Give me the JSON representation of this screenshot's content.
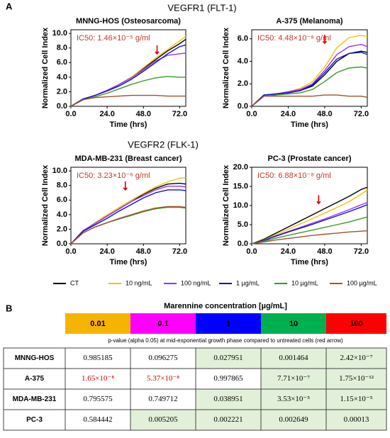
{
  "panel_a": {
    "label": "A",
    "groups": [
      "VEGFR1 (FLT-1)",
      "VEGFR2 (FLK-1)"
    ]
  },
  "legend": [
    {
      "name": "CT",
      "color": "#000000"
    },
    {
      "name": "10 ng/mL",
      "color": "#f2c500"
    },
    {
      "name": "100 ng/mL",
      "color": "#9b30ff"
    },
    {
      "name": "1 µg/mL",
      "color": "#1010c8"
    },
    {
      "name": "10 µg/mL",
      "color": "#3a9a28"
    },
    {
      "name": "100 µg/mL",
      "color": "#a0522d"
    }
  ],
  "chart_data": [
    {
      "type": "line",
      "title": "MNNG-HOS  (Osteosarcoma)",
      "annotation": "IC50: 1.46×10⁻⁵ g/ml",
      "xlabel": "Time (hrs)",
      "ylabel": "Normalized Cell Index",
      "x": [
        0,
        8,
        16,
        24,
        32,
        40,
        48,
        56,
        64,
        72,
        76
      ],
      "xlim": [
        0,
        76
      ],
      "ylim": [
        0,
        10.5
      ],
      "xticks": [
        {
          "value": 0,
          "label": "0.0"
        },
        {
          "value": 24,
          "label": "24.0"
        },
        {
          "value": 48,
          "label": "48.0"
        },
        {
          "value": 72,
          "label": "72.0"
        }
      ],
      "yticks": [
        {
          "value": 0,
          "label": "0.0"
        },
        {
          "value": 2,
          "label": "2.0"
        },
        {
          "value": 4,
          "label": "4.0"
        },
        {
          "value": 6,
          "label": "6.0"
        },
        {
          "value": 8,
          "label": "8.0"
        },
        {
          "value": 10,
          "label": "10.0"
        }
      ],
      "arrow": {
        "x": 57,
        "y": 7.2
      },
      "series": [
        {
          "values": [
            0,
            1.0,
            1.5,
            2.2,
            3.0,
            4.0,
            5.2,
            6.4,
            7.6,
            8.6,
            9.2
          ]
        },
        {
          "values": [
            0,
            1.0,
            1.5,
            2.1,
            3.0,
            4.0,
            5.3,
            6.6,
            7.8,
            9.0,
            9.6
          ]
        },
        {
          "values": [
            0,
            1.0,
            1.5,
            2.2,
            3.0,
            3.9,
            5.0,
            6.2,
            7.0,
            7.2,
            7.3
          ]
        },
        {
          "values": [
            0,
            1.0,
            1.5,
            2.1,
            2.8,
            3.7,
            4.8,
            6.0,
            7.2,
            8.2,
            8.4
          ]
        },
        {
          "values": [
            0,
            0.9,
            1.3,
            1.8,
            2.4,
            3.0,
            3.5,
            3.9,
            4.1,
            4.0,
            4.0
          ]
        },
        {
          "values": [
            0,
            0.9,
            1.2,
            1.3,
            1.4,
            1.5,
            1.5,
            1.5,
            1.4,
            1.4,
            1.4
          ]
        }
      ]
    },
    {
      "type": "line",
      "title": "A-375 (Melanoma)",
      "annotation": "IC50: 4.48×10⁻⁸ g/ml",
      "xlabel": "Time (hrs)",
      "ylabel": "Normalized Cell Index",
      "x": [
        0,
        8,
        16,
        24,
        32,
        40,
        48,
        56,
        64,
        72,
        76
      ],
      "xlim": [
        0,
        76
      ],
      "ylim": [
        0,
        6.8
      ],
      "xticks": [
        {
          "value": 0,
          "label": "0.0"
        },
        {
          "value": 24,
          "label": "24.0"
        },
        {
          "value": 48,
          "label": "48.0"
        },
        {
          "value": 72,
          "label": "72.0"
        }
      ],
      "yticks": [
        {
          "value": 0,
          "label": "0.0"
        },
        {
          "value": 2,
          "label": "2.0"
        },
        {
          "value": 4,
          "label": "4.0"
        },
        {
          "value": 6,
          "label": "6.0"
        }
      ],
      "arrow": {
        "x": 48,
        "y": 5.6
      },
      "series": [
        {
          "values": [
            0,
            1.0,
            1.1,
            1.2,
            1.4,
            1.8,
            2.8,
            4.0,
            4.7,
            4.9,
            4.8
          ]
        },
        {
          "values": [
            0,
            1.0,
            1.1,
            1.3,
            1.6,
            2.2,
            3.5,
            5.2,
            6.1,
            6.3,
            6.2
          ]
        },
        {
          "values": [
            0,
            1.0,
            1.1,
            1.3,
            1.5,
            2.0,
            3.2,
            4.6,
            5.3,
            5.5,
            5.3
          ]
        },
        {
          "values": [
            0,
            1.0,
            1.1,
            1.2,
            1.4,
            1.9,
            3.0,
            4.2,
            4.7,
            4.8,
            4.6
          ]
        },
        {
          "values": [
            0,
            0.9,
            1.0,
            1.1,
            1.2,
            1.5,
            2.2,
            3.0,
            3.4,
            3.5,
            3.4
          ]
        },
        {
          "values": [
            0,
            0.9,
            0.9,
            0.9,
            0.9,
            0.9,
            1.0,
            1.0,
            0.9,
            0.9,
            0.8
          ]
        }
      ]
    },
    {
      "type": "line",
      "title": "MDA-MB-231 (Breast cancer)",
      "annotation": "IC50: 3.23×10⁻⁶ g/ml",
      "xlabel": "Time (hrs)",
      "ylabel": "Normalized Cell Index",
      "x": [
        0,
        8,
        16,
        24,
        32,
        40,
        48,
        56,
        64,
        72,
        76
      ],
      "xlim": [
        0,
        76
      ],
      "ylim": [
        0,
        10.5
      ],
      "xticks": [
        {
          "value": 0,
          "label": "0.0"
        },
        {
          "value": 24,
          "label": "24.0"
        },
        {
          "value": 48,
          "label": "48.0"
        },
        {
          "value": 72,
          "label": "72.0"
        }
      ],
      "yticks": [
        {
          "value": 0,
          "label": "0.0"
        },
        {
          "value": 2,
          "label": "2.0"
        },
        {
          "value": 4,
          "label": "4.0"
        },
        {
          "value": 6,
          "label": "6.0"
        },
        {
          "value": 8,
          "label": "8.0"
        },
        {
          "value": 10,
          "label": "10.0"
        }
      ],
      "arrow": {
        "x": 36,
        "y": 7.4
      },
      "series": [
        {
          "values": [
            0,
            1.8,
            2.8,
            3.8,
            4.8,
            5.8,
            6.8,
            7.6,
            8.2,
            8.3,
            8.2
          ]
        },
        {
          "values": [
            0,
            1.8,
            2.9,
            4.0,
            5.0,
            6.0,
            6.9,
            7.8,
            8.5,
            9.0,
            9.1
          ]
        },
        {
          "values": [
            0,
            1.8,
            2.8,
            3.8,
            4.8,
            5.8,
            6.6,
            7.4,
            7.9,
            7.9,
            7.8
          ]
        },
        {
          "values": [
            0,
            1.7,
            2.6,
            3.5,
            4.5,
            5.4,
            6.3,
            7.0,
            7.4,
            7.4,
            7.3
          ]
        },
        {
          "values": [
            0,
            1.5,
            2.3,
            2.9,
            3.4,
            3.9,
            4.4,
            4.8,
            5.0,
            5.0,
            4.9
          ]
        },
        {
          "values": [
            0,
            1.5,
            2.3,
            2.9,
            3.5,
            4.0,
            4.5,
            4.9,
            5.1,
            5.1,
            5.0
          ]
        }
      ]
    },
    {
      "type": "line",
      "title": "PC-3 (Prostate cancer)",
      "annotation": "IC50: 6.88×10⁻⁸ g/ml",
      "xlabel": "Time (hrs)",
      "ylabel": "Normalized Cell Index",
      "x": [
        0,
        8,
        16,
        24,
        32,
        40,
        48,
        56,
        64,
        72,
        76
      ],
      "xlim": [
        0,
        76
      ],
      "ylim": [
        0,
        20
      ],
      "xticks": [
        {
          "value": 0,
          "label": "0.0"
        },
        {
          "value": 24,
          "label": "24.0"
        },
        {
          "value": 48,
          "label": "48.0"
        },
        {
          "value": 72,
          "label": "72.0"
        }
      ],
      "yticks": [
        {
          "value": 0,
          "label": "0.0"
        },
        {
          "value": 5,
          "label": "5.0"
        },
        {
          "value": 10,
          "label": "10.0"
        },
        {
          "value": 15,
          "label": "15.0"
        },
        {
          "value": 20,
          "label": "20.0"
        }
      ],
      "arrow": {
        "x": 44,
        "y": 10.5
      },
      "series": [
        {
          "values": [
            0,
            1.2,
            2.8,
            4.4,
            6.0,
            7.6,
            9.2,
            10.8,
            12.4,
            14.2,
            14.8
          ]
        },
        {
          "values": [
            0,
            1.0,
            2.4,
            3.8,
            5.2,
            6.6,
            8.0,
            9.5,
            11.0,
            13.0,
            14.0
          ]
        },
        {
          "values": [
            0,
            0.9,
            2.1,
            3.2,
            4.3,
            5.4,
            6.5,
            7.7,
            8.9,
            10.2,
            10.8
          ]
        },
        {
          "values": [
            0,
            0.9,
            2.0,
            3.1,
            4.1,
            5.1,
            6.2,
            7.3,
            8.4,
            9.6,
            10.2
          ]
        },
        {
          "values": [
            0,
            0.7,
            1.5,
            2.2,
            2.9,
            3.6,
            4.3,
            5.0,
            5.7,
            6.6,
            7.0
          ]
        },
        {
          "values": [
            0,
            0.5,
            1.0,
            1.4,
            1.8,
            2.2,
            2.5,
            2.8,
            3.1,
            3.3,
            3.4
          ]
        }
      ]
    }
  ],
  "panel_b": {
    "label": "B",
    "heading": "Marennine concentration [µg/mL]",
    "concentrations": [
      {
        "text": "0.01",
        "color": "#f5b400"
      },
      {
        "text": "0.1",
        "color": "#ff00ff"
      },
      {
        "text": "1",
        "color": "#0000ff"
      },
      {
        "text": "10",
        "color": "#00b050"
      },
      {
        "text": "100",
        "color": "#ff0000"
      }
    ],
    "subtitle": "p-value (alpha 0.05) at mid-exponential  growth phase compared to untreated cells (red arrow)",
    "shade_color": "#e2f0d9",
    "red_text_color": "#c00000",
    "rows": [
      {
        "name": "MNNG-HOS",
        "cells": [
          "0.985185",
          "0.096275",
          "0.027951",
          "0.001464",
          "2.42×10⁻⁷"
        ],
        "shaded": [
          false,
          false,
          true,
          true,
          true
        ],
        "red_text": [
          false,
          false,
          false,
          false,
          false
        ]
      },
      {
        "name": "A-375",
        "cells": [
          "1.65×10⁻⁸",
          "5.37×10⁻⁸",
          "0.997865",
          "7.71×10⁻⁷",
          "1.75×10⁻¹²"
        ],
        "shaded": [
          false,
          false,
          false,
          true,
          true
        ],
        "red_text": [
          true,
          true,
          false,
          false,
          false
        ]
      },
      {
        "name": "MDA-MB-231",
        "cells": [
          "0.795575",
          "0.749712",
          "0.038951",
          "3.53×10⁻⁵",
          "1.15×10⁻⁵"
        ],
        "shaded": [
          false,
          false,
          true,
          true,
          true
        ],
        "red_text": [
          false,
          false,
          false,
          false,
          false
        ]
      },
      {
        "name": "PC-3",
        "cells": [
          "0.584442",
          "0.005205",
          "0.002221",
          "0.002649",
          "0.00013"
        ],
        "shaded": [
          false,
          true,
          true,
          true,
          true
        ],
        "red_text": [
          false,
          false,
          false,
          false,
          false
        ]
      }
    ]
  }
}
